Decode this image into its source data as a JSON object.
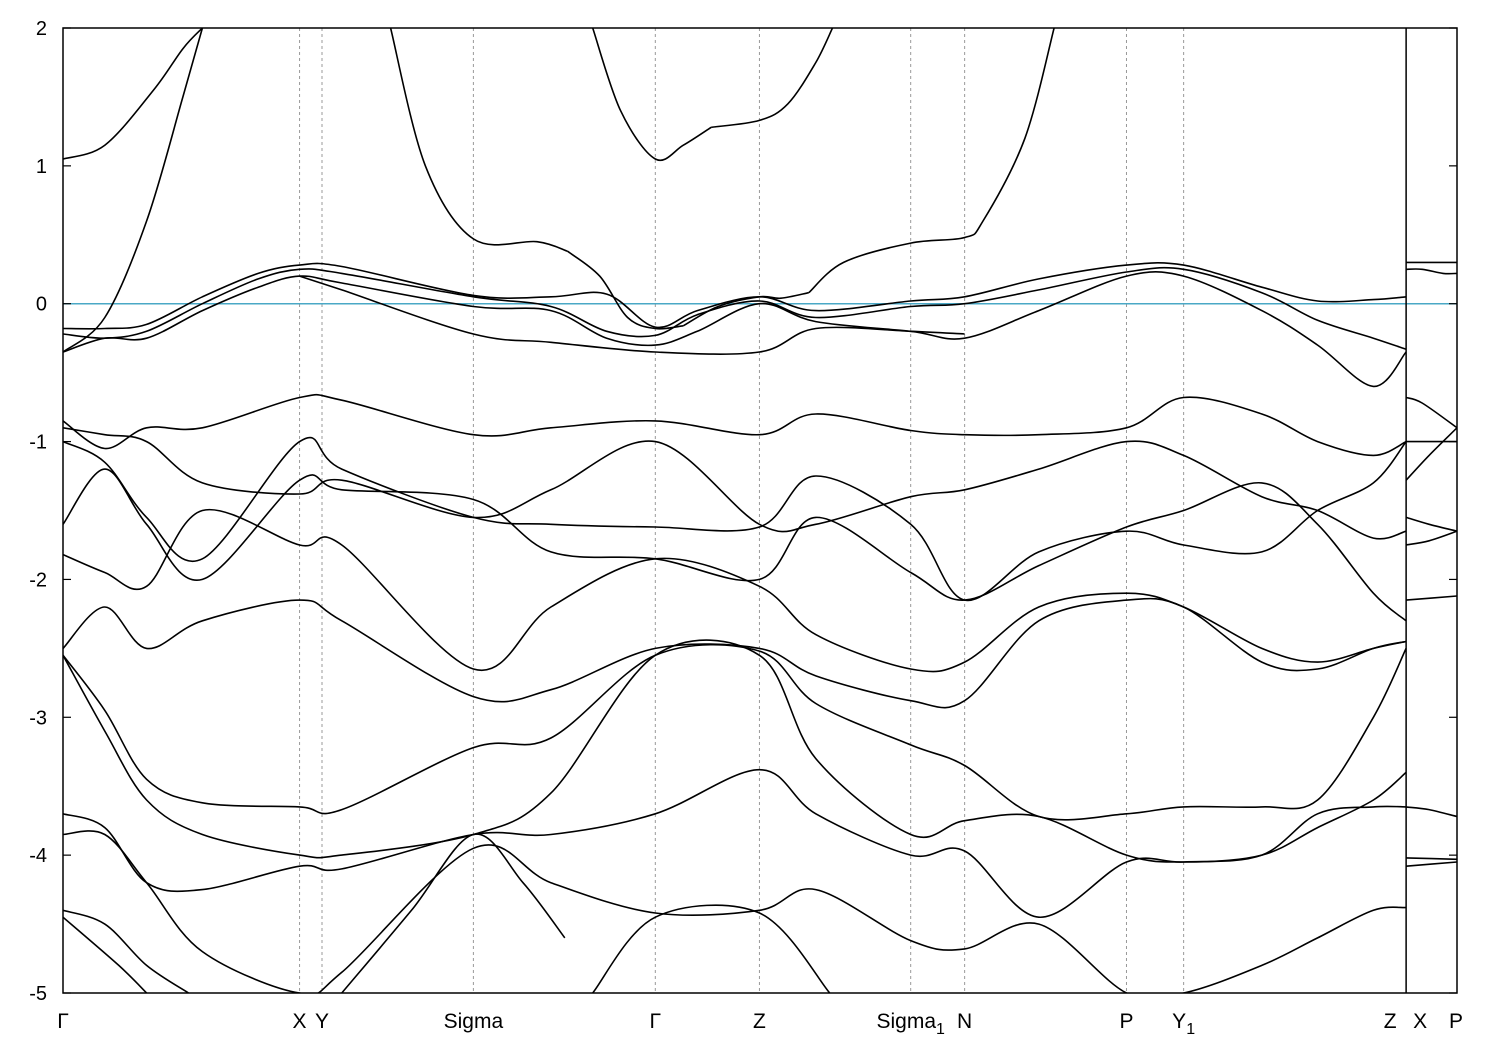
{
  "chart_data": {
    "type": "line",
    "title": "",
    "xlabel": "",
    "ylabel": "",
    "ylim": [
      -5,
      2
    ],
    "yticks": [
      -5,
      -4,
      -3,
      -2,
      -1,
      0,
      1,
      2
    ],
    "grid": false,
    "fermi_level": 0,
    "colors": {
      "bands": "#000000",
      "fermi": "#4aa8c6",
      "kpoint_lines": "#999999"
    },
    "kpoints": [
      {
        "label": "Γ",
        "x": 0,
        "sub": ""
      },
      {
        "label": "X",
        "x": 0.1697,
        "sub": ""
      },
      {
        "label": "Y",
        "x": 0.1858,
        "sub": ""
      },
      {
        "label": "Sigma",
        "x": 0.2944,
        "sub": ""
      },
      {
        "label": "Γ",
        "x": 0.4249,
        "sub": ""
      },
      {
        "label": "Z",
        "x": 0.4996,
        "sub": ""
      },
      {
        "label": "Sigma",
        "x": 0.6081,
        "sub": "1"
      },
      {
        "label": "N",
        "x": 0.6468,
        "sub": ""
      },
      {
        "label": "P",
        "x": 0.7629,
        "sub": ""
      },
      {
        "label": "Y",
        "x": 0.8039,
        "sub": "1"
      },
      {
        "label": "Z",
        "x": 0.9635,
        "sub": ""
      },
      {
        "label": "X",
        "x": 0.9635,
        "sub": ""
      },
      {
        "label": "P",
        "x": 1.0,
        "sub": ""
      }
    ],
    "break_after_x": 0.9635,
    "series": [
      {
        "x": [
          0,
          0.03,
          0.065,
          0.086,
          0.1
        ],
        "y": [
          1.05,
          1.15,
          1.55,
          1.85,
          2.0
        ]
      },
      {
        "x": [
          0,
          0.03,
          0.06,
          0.086,
          0.1
        ],
        "y": [
          -0.35,
          -0.1,
          0.6,
          1.5,
          2.0
        ]
      },
      {
        "x": [
          0.235,
          0.26,
          0.2944,
          0.34,
          0.362
        ],
        "y": [
          2.0,
          1.0,
          0.47,
          0.45,
          0.38
        ]
      },
      {
        "x": [
          0.362,
          0.385,
          0.405,
          0.4249,
          0.445
        ],
        "y": [
          0.38,
          0.2,
          -0.1,
          -0.18,
          -0.16
        ]
      },
      {
        "x": [
          0.445,
          0.47,
          0.4996,
          0.515,
          0.535
        ],
        "y": [
          -0.16,
          -0.02,
          0.05,
          0.04,
          0.08
        ]
      },
      {
        "x": [
          0.535,
          0.56,
          0.6081,
          0.6468,
          0.66,
          0.69,
          0.711
        ],
        "y": [
          0.08,
          0.3,
          0.44,
          0.48,
          0.6,
          1.2,
          2.0
        ]
      },
      {
        "x": [
          0.38,
          0.4,
          0.4249,
          0.445,
          0.465
        ],
        "y": [
          2.0,
          1.4,
          1.05,
          1.15,
          1.28
        ]
      },
      {
        "x": [
          0.465,
          0.4996,
          0.52,
          0.54,
          0.552
        ],
        "y": [
          1.28,
          1.33,
          1.45,
          1.75,
          2.0
        ]
      },
      {
        "x": [
          0,
          0.03,
          0.06,
          0.1,
          0.14,
          0.1697,
          0.2,
          0.2944,
          0.35,
          0.39,
          0.4249,
          0.455,
          0.4996,
          0.54,
          0.6081,
          0.6468,
          0.7,
          0.7629,
          0.8039,
          0.86,
          0.9,
          0.94,
          0.9635
        ],
        "y": [
          -0.18,
          -0.18,
          -0.15,
          0.05,
          0.22,
          0.28,
          0.27,
          0.06,
          0.05,
          0.07,
          -0.17,
          -0.05,
          0.05,
          -0.05,
          0.02,
          0.05,
          0.18,
          0.28,
          0.28,
          0.12,
          0.02,
          0.03,
          0.05
        ]
      },
      {
        "x": [
          0,
          0.03,
          0.06,
          0.1,
          0.14,
          0.1697,
          0.2,
          0.2944,
          0.35,
          0.39,
          0.4249,
          0.455,
          0.4996,
          0.54,
          0.6081,
          0.6468,
          0.7,
          0.7629,
          0.8039,
          0.86,
          0.9,
          0.94,
          0.9635
        ],
        "y": [
          -0.22,
          -0.25,
          -0.2,
          0.0,
          0.18,
          0.25,
          0.22,
          0.05,
          -0.02,
          -0.2,
          -0.23,
          -0.08,
          0.02,
          -0.1,
          -0.02,
          0.0,
          0.1,
          0.23,
          0.25,
          0.08,
          -0.12,
          -0.25,
          -0.33
        ]
      },
      {
        "x": [
          0,
          0.03,
          0.06,
          0.1,
          0.14,
          0.1697,
          0.2,
          0.2944,
          0.35,
          0.39,
          0.4249,
          0.455,
          0.4996,
          0.54,
          0.6081,
          0.6468,
          0.7,
          0.7629,
          0.8039,
          0.86,
          0.9,
          0.94,
          0.9635
        ],
        "y": [
          -0.35,
          -0.25,
          -0.25,
          -0.05,
          0.12,
          0.2,
          0.15,
          -0.02,
          -0.05,
          -0.25,
          -0.3,
          -0.2,
          0.0,
          -0.13,
          -0.2,
          -0.25,
          -0.05,
          0.2,
          0.2,
          -0.05,
          -0.3,
          -0.6,
          -0.35
        ]
      },
      {
        "x": [
          0.1697,
          0.2,
          0.2944,
          0.35,
          0.4249,
          0.4996,
          0.54,
          0.6081,
          0.6468
        ],
        "y": [
          0.2,
          0.1,
          -0.22,
          -0.28,
          -0.35,
          -0.35,
          -0.18,
          -0.2,
          -0.22
        ]
      },
      {
        "x": [
          0,
          0.03,
          0.06,
          0.1,
          0.1697,
          0.2,
          0.2944,
          0.35,
          0.4249,
          0.4996,
          0.54,
          0.6081,
          0.6468,
          0.7,
          0.7629,
          0.8039,
          0.86,
          0.9,
          0.94,
          0.9635
        ],
        "y": [
          -0.85,
          -1.05,
          -0.9,
          -0.9,
          -0.68,
          -0.7,
          -0.95,
          -0.9,
          -0.85,
          -0.95,
          -0.8,
          -0.92,
          -0.95,
          -0.95,
          -0.9,
          -0.68,
          -0.8,
          -1.0,
          -1.1,
          -1.0
        ]
      },
      {
        "x": [
          0,
          0.03,
          0.06,
          0.1,
          0.1697,
          0.2,
          0.2944,
          0.35,
          0.4249,
          0.4996,
          0.54,
          0.6081,
          0.6468,
          0.7,
          0.7629,
          0.8039,
          0.86,
          0.9,
          0.94,
          0.9635
        ],
        "y": [
          -0.9,
          -0.95,
          -1.0,
          -1.3,
          -1.38,
          -1.28,
          -1.55,
          -1.35,
          -1.0,
          -1.6,
          -1.6,
          -1.4,
          -1.35,
          -1.2,
          -1.0,
          -1.1,
          -1.4,
          -1.5,
          -1.7,
          -1.65
        ]
      },
      {
        "x": [
          0,
          0.03,
          0.06,
          0.1,
          0.1697,
          0.2,
          0.2944,
          0.35,
          0.4249,
          0.4996,
          0.54,
          0.6081,
          0.6468,
          0.7,
          0.7629,
          0.8039,
          0.86,
          0.9,
          0.94,
          0.9635
        ],
        "y": [
          -1.0,
          -1.15,
          -1.55,
          -1.85,
          -1.0,
          -1.2,
          -1.55,
          -1.6,
          -1.62,
          -1.62,
          -1.25,
          -1.6,
          -2.15,
          -1.8,
          -1.65,
          -1.75,
          -1.8,
          -1.5,
          -1.3,
          -1.0
        ]
      },
      {
        "x": [
          0,
          0.03,
          0.06,
          0.1,
          0.1697,
          0.2,
          0.2944,
          0.35,
          0.4249,
          0.4996,
          0.54,
          0.6081,
          0.6468,
          0.7,
          0.7629,
          0.8039,
          0.86,
          0.9,
          0.94,
          0.9635
        ],
        "y": [
          -1.6,
          -1.2,
          -1.6,
          -2.0,
          -1.28,
          -1.35,
          -1.42,
          -1.8,
          -1.85,
          -2.0,
          -1.55,
          -1.95,
          -2.15,
          -1.9,
          -1.62,
          -1.5,
          -1.3,
          -1.6,
          -2.1,
          -2.3
        ]
      },
      {
        "x": [
          0,
          0.03,
          0.06,
          0.1,
          0.1697,
          0.2,
          0.2944,
          0.35,
          0.4249,
          0.4996,
          0.54,
          0.6081,
          0.6468,
          0.7,
          0.7629,
          0.8039,
          0.86,
          0.9,
          0.94,
          0.9635
        ],
        "y": [
          -1.82,
          -1.95,
          -2.05,
          -1.5,
          -1.75,
          -1.75,
          -2.65,
          -2.2,
          -1.85,
          -2.05,
          -2.4,
          -2.65,
          -2.6,
          -2.2,
          -2.1,
          -2.2,
          -2.5,
          -2.6,
          -2.5,
          -2.45
        ]
      },
      {
        "x": [
          0,
          0.03,
          0.06,
          0.1,
          0.1697,
          0.2,
          0.2944,
          0.35,
          0.4249,
          0.4996,
          0.54,
          0.6081,
          0.6468,
          0.7,
          0.7629,
          0.8039,
          0.86,
          0.9,
          0.94,
          0.9635
        ],
        "y": [
          -2.5,
          -2.2,
          -2.5,
          -2.3,
          -2.15,
          -2.3,
          -2.85,
          -2.8,
          -2.5,
          -2.5,
          -2.7,
          -2.88,
          -2.88,
          -2.3,
          -2.15,
          -2.2,
          -2.6,
          -2.65,
          -2.5,
          -2.45
        ]
      },
      {
        "x": [
          0,
          0.03,
          0.06,
          0.1,
          0.1697,
          0.2,
          0.2944,
          0.35,
          0.4249,
          0.4996,
          0.54,
          0.6081,
          0.6468,
          0.7,
          0.7629,
          0.8039,
          0.86,
          0.9,
          0.94,
          0.9635
        ],
        "y": [
          -2.55,
          -2.95,
          -3.45,
          -3.62,
          -3.65,
          -3.67,
          -3.22,
          -3.15,
          -2.55,
          -2.52,
          -2.9,
          -3.2,
          -3.35,
          -3.72,
          -3.7,
          -3.65,
          -3.65,
          -3.6,
          -3.0,
          -2.5
        ]
      },
      {
        "x": [
          0,
          0.03,
          0.06,
          0.1,
          0.1697,
          0.2,
          0.2944,
          0.35,
          0.4249,
          0.4996,
          0.54,
          0.6081,
          0.6468,
          0.7,
          0.7629,
          0.8039,
          0.86,
          0.9,
          0.94,
          0.9635
        ],
        "y": [
          -2.55,
          -3.1,
          -3.6,
          -3.85,
          -4.0,
          -4.0,
          -3.85,
          -3.55,
          -2.55,
          -2.55,
          -3.3,
          -3.85,
          -3.75,
          -3.72,
          -4.0,
          -4.05,
          -4.0,
          -3.8,
          -3.6,
          -3.4
        ]
      },
      {
        "x": [
          0,
          0.03,
          0.06,
          0.1,
          0.1697,
          0.2,
          0.2944,
          0.35,
          0.4249,
          0.4996,
          0.54,
          0.6081,
          0.6468,
          0.7,
          0.7629,
          0.8039,
          0.86,
          0.9,
          0.94,
          0.9635
        ],
        "y": [
          -3.7,
          -3.8,
          -4.2,
          -4.25,
          -4.08,
          -4.1,
          -3.85,
          -3.85,
          -3.7,
          -3.38,
          -3.7,
          -4.0,
          -3.97,
          -4.45,
          -4.05,
          -4.05,
          -4.0,
          -3.7,
          -3.65,
          -3.65
        ]
      },
      {
        "x": [
          0,
          0.03,
          0.06,
          0.1,
          0.1697,
          0.2,
          0.2944,
          0.35,
          0.4249,
          0.4996,
          0.54,
          0.6081,
          0.6468,
          0.7,
          0.7629,
          0.8039,
          0.86,
          0.9,
          0.94,
          0.9635
        ],
        "y": [
          -3.85,
          -3.85,
          -4.2,
          -4.7,
          -5.0,
          -4.85,
          -3.95,
          -4.2,
          -4.42,
          -4.4,
          -4.25,
          -4.62,
          -4.68,
          -4.5,
          -5.0,
          -5.0,
          -4.8,
          -4.6,
          -4.4,
          -4.38
        ]
      },
      {
        "x": [
          0,
          0.03,
          0.06,
          0.09
        ],
        "y": [
          -4.4,
          -4.5,
          -4.8,
          -5.0
        ]
      },
      {
        "x": [
          0,
          0.04,
          0.06
        ],
        "y": [
          -4.45,
          -4.8,
          -5.0
        ]
      },
      {
        "x": [
          0.2,
          0.25,
          0.2944,
          0.33,
          0.36
        ],
        "y": [
          -5.0,
          -4.4,
          -3.85,
          -4.2,
          -4.6
        ]
      },
      {
        "x": [
          0.38,
          0.4249,
          0.4996,
          0.55
        ],
        "y": [
          -5.0,
          -4.45,
          -4.42,
          -5.0
        ]
      },
      {
        "x": [
          0.9635,
          0.975,
          0.99,
          1.0
        ],
        "y": [
          0.3,
          0.3,
          0.3,
          0.3
        ]
      },
      {
        "x": [
          0.9635,
          0.975,
          0.99,
          1.0
        ],
        "y": [
          0.25,
          0.25,
          0.22,
          0.22
        ]
      },
      {
        "x": [
          0.9635,
          0.975,
          1.0
        ],
        "y": [
          -0.68,
          -0.72,
          -0.9
        ]
      },
      {
        "x": [
          0.9635,
          0.98,
          1.0
        ],
        "y": [
          -1.28,
          -1.1,
          -0.9
        ]
      },
      {
        "x": [
          0.9635,
          1.0
        ],
        "y": [
          -1.0,
          -1.0
        ]
      },
      {
        "x": [
          0.9635,
          0.98,
          1.0
        ],
        "y": [
          -1.55,
          -1.6,
          -1.65
        ]
      },
      {
        "x": [
          0.9635,
          0.98,
          1.0
        ],
        "y": [
          -1.75,
          -1.72,
          -1.65
        ]
      },
      {
        "x": [
          0.9635,
          1.0
        ],
        "y": [
          -2.15,
          -2.12
        ]
      },
      {
        "x": [
          0.9635,
          0.98,
          1.0
        ],
        "y": [
          -3.65,
          -3.67,
          -3.72
        ]
      },
      {
        "x": [
          0.9635,
          1.0
        ],
        "y": [
          -4.02,
          -4.03
        ]
      },
      {
        "x": [
          0.9635,
          1.0
        ],
        "y": [
          -4.08,
          -4.05
        ]
      }
    ]
  }
}
